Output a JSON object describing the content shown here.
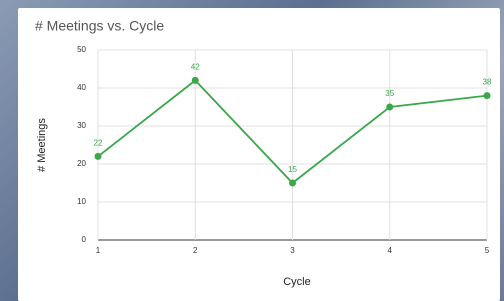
{
  "chart_data": {
    "type": "line",
    "title": "# Meetings vs. Cycle",
    "x_label": "Cycle",
    "y_label": "# Meetings",
    "x": [
      1,
      2,
      3,
      4,
      5
    ],
    "values": [
      22,
      42,
      15,
      35,
      38
    ],
    "color": "#3aa84a",
    "xlim": [
      1,
      5
    ],
    "xticks": [
      1,
      2,
      3,
      4,
      5
    ],
    "ylim": [
      0,
      50
    ],
    "yticks": [
      0,
      10,
      20,
      30,
      40,
      50
    ],
    "grid": true,
    "data_labels": true
  }
}
